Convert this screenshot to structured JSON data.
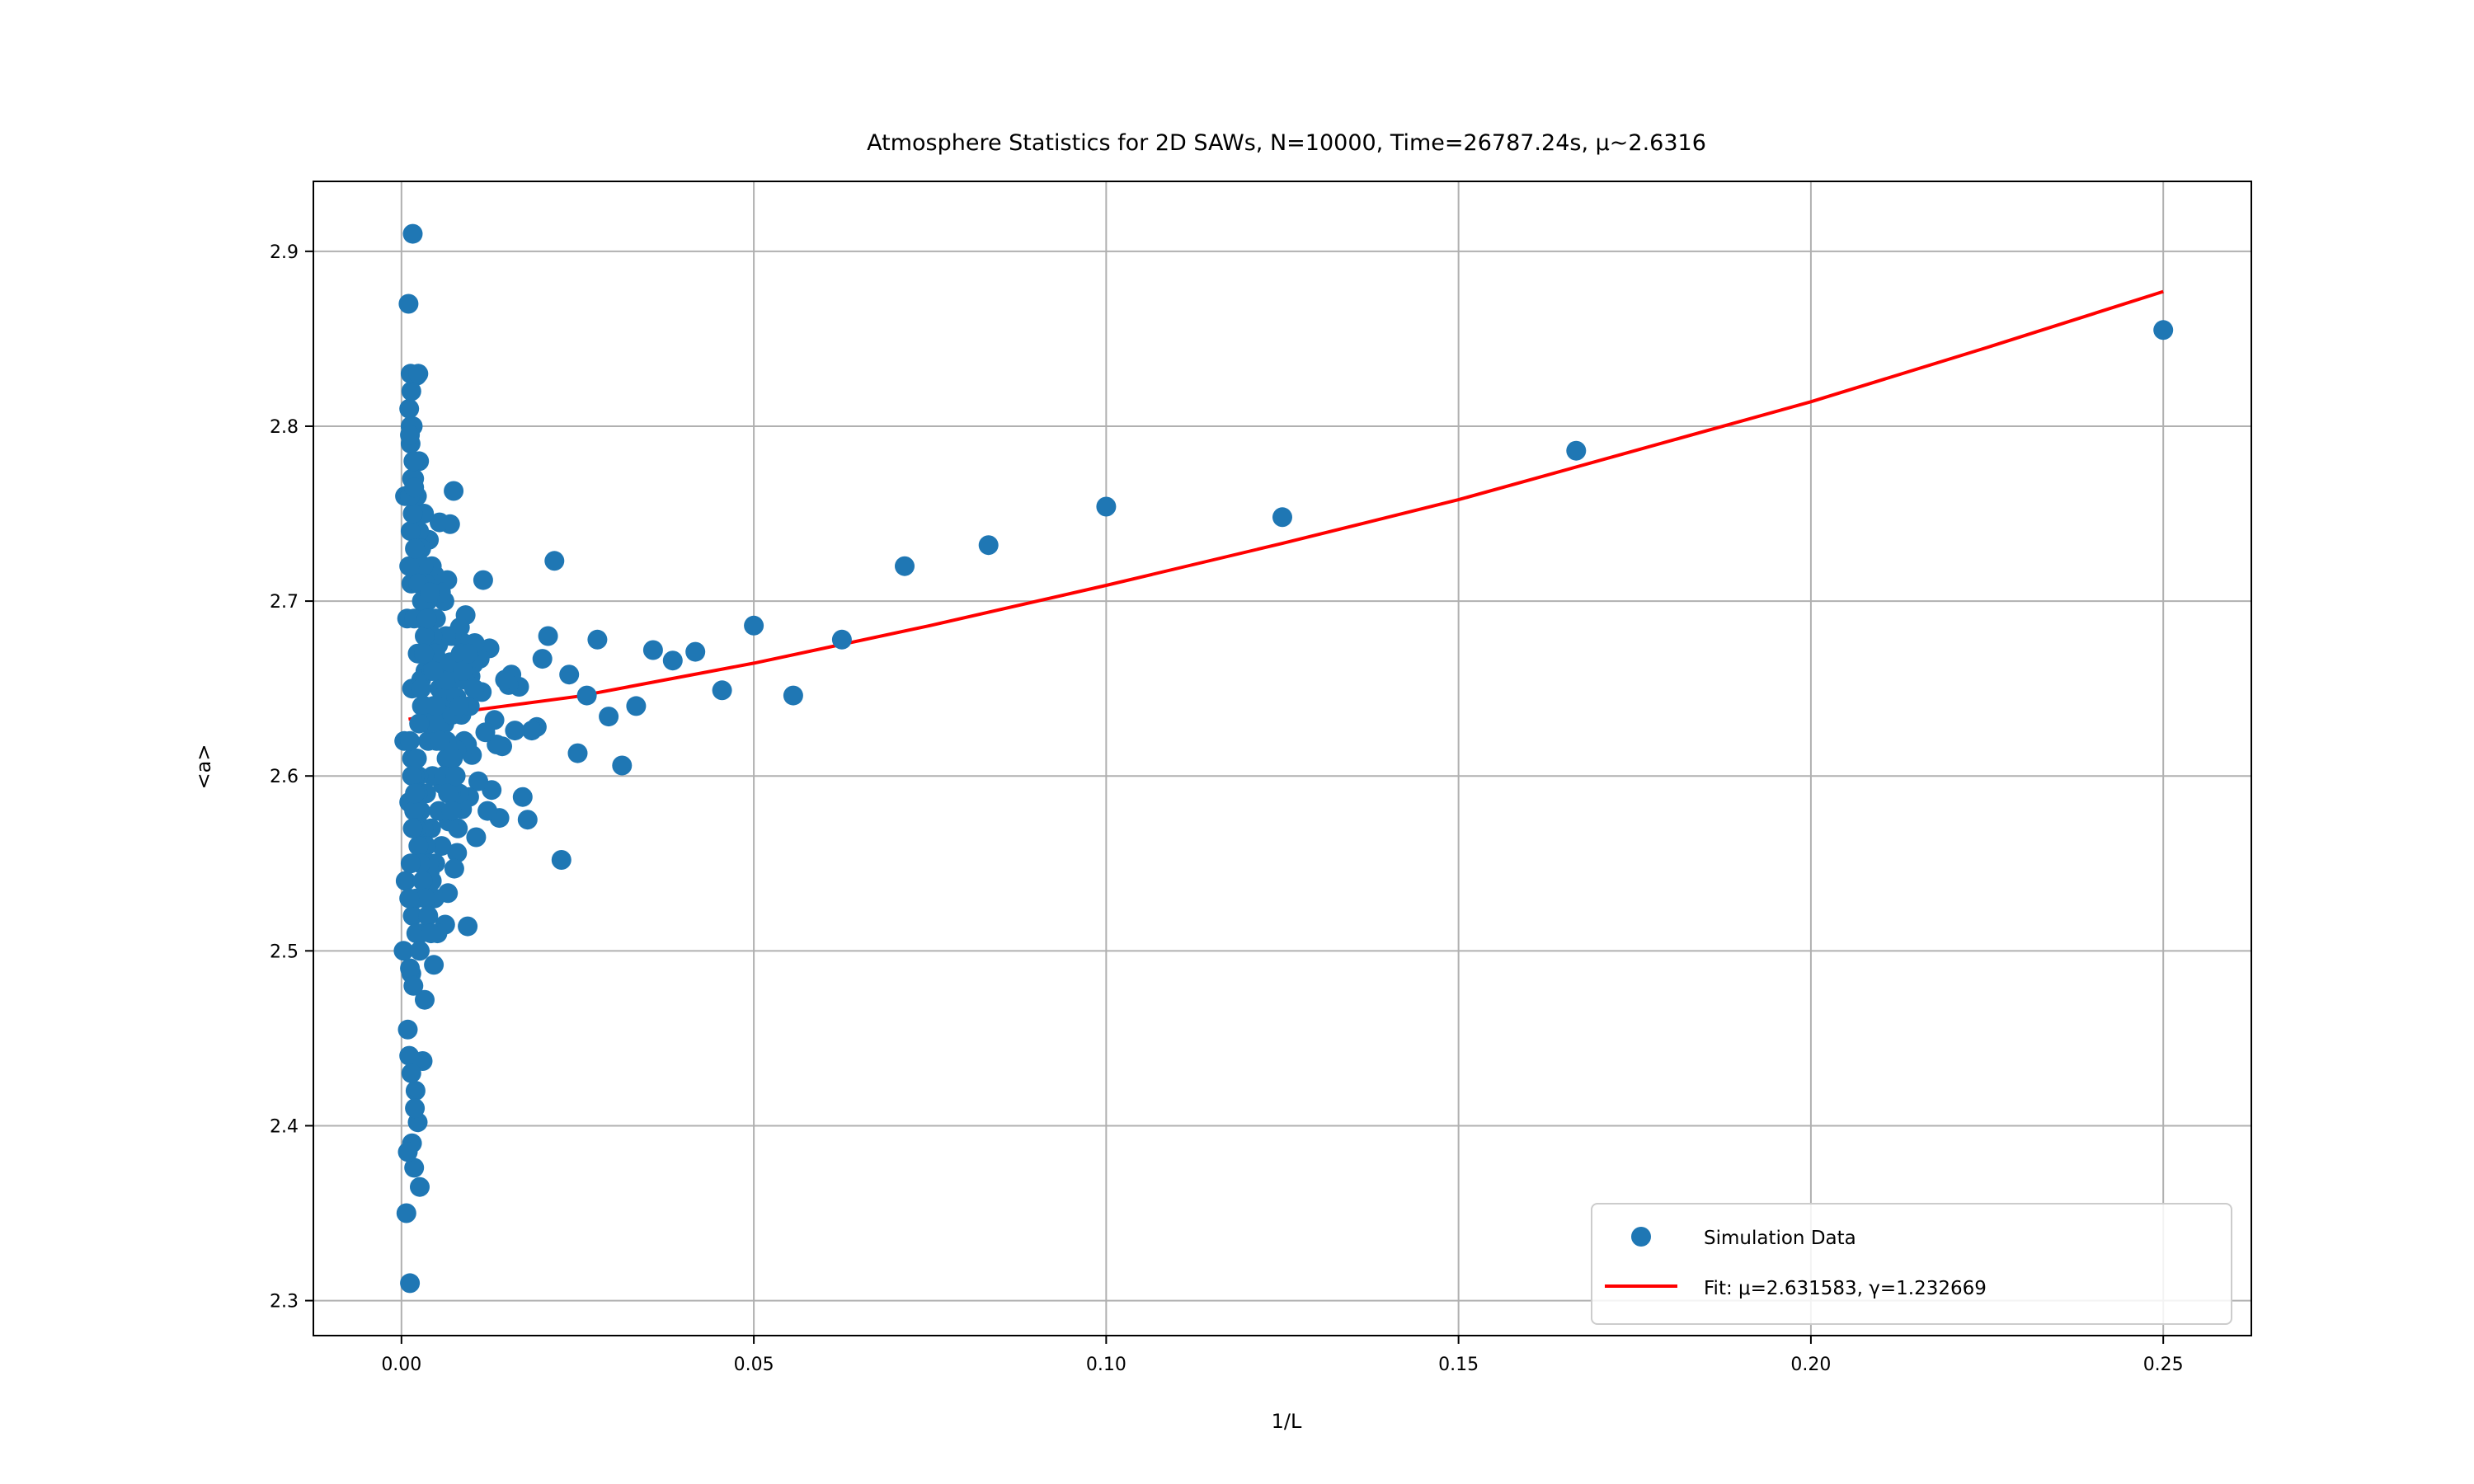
{
  "chart_data": {
    "type": "scatter",
    "title": "Atmosphere Statistics for 2D SAWs, N=10000, Time=26787.24s, μ~2.6316",
    "xlabel": "1/L",
    "ylabel": "<a>",
    "xlim": [
      -0.0125,
      0.2625
    ],
    "ylim": [
      2.28,
      2.94
    ],
    "xticks": [
      0.0,
      0.05,
      0.1,
      0.15,
      0.2,
      0.25
    ],
    "xtick_labels": [
      "0.00",
      "0.05",
      "0.10",
      "0.15",
      "0.20",
      "0.25"
    ],
    "yticks": [
      2.3,
      2.4,
      2.5,
      2.6,
      2.7,
      2.8,
      2.9
    ],
    "ytick_labels": [
      "2.3",
      "2.4",
      "2.5",
      "2.6",
      "2.7",
      "2.8",
      "2.9"
    ],
    "grid": true,
    "legend_position": "bottom-right",
    "colors": {
      "scatter": "#1f77b4",
      "fit": "#ff0000"
    },
    "series": [
      {
        "name": "Simulation Data",
        "kind": "scatter",
        "points": [
          [
            0.25,
            2.855
          ],
          [
            0.1667,
            2.786
          ],
          [
            0.125,
            2.748
          ],
          [
            0.1,
            2.754
          ],
          [
            0.0833,
            2.732
          ],
          [
            0.0714,
            2.72
          ],
          [
            0.0625,
            2.678
          ],
          [
            0.0556,
            2.646
          ],
          [
            0.05,
            2.686
          ],
          [
            0.0455,
            2.649
          ],
          [
            0.0417,
            2.671
          ],
          [
            0.0385,
            2.666
          ],
          [
            0.0357,
            2.672
          ],
          [
            0.0333,
            2.64
          ],
          [
            0.0313,
            2.606
          ],
          [
            0.0294,
            2.634
          ],
          [
            0.0278,
            2.678
          ],
          [
            0.0263,
            2.646
          ],
          [
            0.025,
            2.613
          ],
          [
            0.0238,
            2.658
          ],
          [
            0.0227,
            2.552
          ],
          [
            0.0217,
            2.723
          ],
          [
            0.0208,
            2.68
          ],
          [
            0.02,
            2.667
          ],
          [
            0.0192,
            2.628
          ],
          [
            0.0185,
            2.626
          ],
          [
            0.0179,
            2.575
          ],
          [
            0.0172,
            2.588
          ],
          [
            0.0167,
            2.651
          ],
          [
            0.0161,
            2.626
          ],
          [
            0.0156,
            2.658
          ],
          [
            0.0152,
            2.652
          ],
          [
            0.0147,
            2.655
          ],
          [
            0.0143,
            2.617
          ],
          [
            0.0139,
            2.576
          ],
          [
            0.0135,
            2.618
          ],
          [
            0.0132,
            2.632
          ],
          [
            0.0128,
            2.592
          ],
          [
            0.0125,
            2.673
          ],
          [
            0.0122,
            2.58
          ],
          [
            0.0119,
            2.625
          ],
          [
            0.0116,
            2.712
          ],
          [
            0.0114,
            2.648
          ],
          [
            0.0111,
            2.667
          ],
          [
            0.0109,
            2.597
          ],
          [
            0.0106,
            2.565
          ],
          [
            0.0104,
            2.676
          ],
          [
            0.0102,
            2.664
          ],
          [
            0.01,
            2.612
          ],
          [
            0.0098,
            2.657
          ],
          [
            0.0096,
            2.588
          ],
          [
            0.0094,
            2.514
          ],
          [
            0.0093,
            2.618
          ],
          [
            0.0091,
            2.692
          ],
          [
            0.0089,
            2.62
          ],
          [
            0.0088,
            2.676
          ],
          [
            0.0086,
            2.581
          ],
          [
            0.0085,
            2.635
          ],
          [
            0.0083,
            2.685
          ],
          [
            0.0082,
            2.59
          ],
          [
            0.008,
            2.57
          ],
          [
            0.0079,
            2.556
          ],
          [
            0.0078,
            2.615
          ],
          [
            0.0076,
            2.66
          ],
          [
            0.0075,
            2.547
          ],
          [
            0.0074,
            2.763
          ],
          [
            0.0073,
            2.61
          ],
          [
            0.0072,
            2.64
          ],
          [
            0.0071,
            2.68
          ],
          [
            0.007,
            2.59
          ],
          [
            0.0069,
            2.744
          ],
          [
            0.0068,
            2.652
          ],
          [
            0.0067,
            2.574
          ],
          [
            0.0066,
            2.533
          ],
          [
            0.0065,
            2.712
          ],
          [
            0.0064,
            2.61
          ],
          [
            0.0063,
            2.68
          ],
          [
            0.0062,
            2.515
          ],
          [
            0.0061,
            2.7
          ],
          [
            0.006,
            2.64
          ],
          [
            0.0059,
            2.595
          ],
          [
            0.0058,
            2.66
          ],
          [
            0.0057,
            2.56
          ],
          [
            0.0056,
            2.705
          ],
          [
            0.0055,
            2.63
          ],
          [
            0.0054,
            2.745
          ],
          [
            0.0053,
            2.58
          ],
          [
            0.0052,
            2.675
          ],
          [
            0.0051,
            2.51
          ],
          [
            0.005,
            2.62
          ],
          [
            0.0049,
            2.69
          ],
          [
            0.0048,
            2.55
          ],
          [
            0.0047,
            2.715
          ],
          [
            0.0046,
            2.492
          ],
          [
            0.0045,
            2.64
          ],
          [
            0.0044,
            2.6
          ],
          [
            0.0043,
            2.72
          ],
          [
            0.0042,
            2.57
          ],
          [
            0.0041,
            2.68
          ],
          [
            0.004,
            2.545
          ],
          [
            0.0039,
            2.735
          ],
          [
            0.0038,
            2.62
          ],
          [
            0.0037,
            2.52
          ],
          [
            0.0036,
            2.7
          ],
          [
            0.0035,
            2.59
          ],
          [
            0.0034,
            2.66
          ],
          [
            0.0033,
            2.472
          ],
          [
            0.0032,
            2.75
          ],
          [
            0.0031,
            2.56
          ],
          [
            0.003,
            2.437
          ],
          [
            0.0029,
            2.64
          ],
          [
            0.0028,
            2.69
          ],
          [
            0.0027,
            2.51
          ],
          [
            0.0026,
            2.365
          ],
          [
            0.0025,
            2.78
          ],
          [
            0.0024,
            2.6
          ],
          [
            0.0023,
            2.402
          ],
          [
            0.0022,
            2.829
          ],
          [
            0.0021,
            2.53
          ],
          [
            0.002,
            2.42
          ],
          [
            0.0019,
            2.72
          ],
          [
            0.0018,
            2.376
          ],
          [
            0.0017,
            2.57
          ],
          [
            0.0016,
            2.91
          ],
          [
            0.0015,
            2.65
          ],
          [
            0.0014,
            2.487
          ],
          [
            0.0013,
            2.8
          ],
          [
            0.0012,
            2.31
          ],
          [
            0.0011,
            2.585
          ],
          [
            0.001,
            2.87
          ],
          [
            0.0009,
            2.455
          ],
          [
            0.0008,
            2.69
          ],
          [
            0.0007,
            2.35
          ],
          [
            0.0006,
            2.54
          ],
          [
            0.0005,
            2.76
          ],
          [
            0.0004,
            2.62
          ],
          [
            0.0003,
            2.5
          ],
          [
            0.0013,
            2.79
          ],
          [
            0.0018,
            2.77
          ],
          [
            0.0022,
            2.76
          ],
          [
            0.0025,
            2.74
          ],
          [
            0.0028,
            2.73
          ],
          [
            0.0031,
            2.72
          ],
          [
            0.0034,
            2.71
          ],
          [
            0.0037,
            2.7
          ],
          [
            0.0041,
            2.69
          ],
          [
            0.0044,
            2.68
          ],
          [
            0.0047,
            2.67
          ],
          [
            0.0051,
            2.66
          ],
          [
            0.0054,
            2.65
          ],
          [
            0.0057,
            2.64
          ],
          [
            0.0061,
            2.63
          ],
          [
            0.0064,
            2.62
          ],
          [
            0.0068,
            2.61
          ],
          [
            0.0015,
            2.61
          ],
          [
            0.0019,
            2.6
          ],
          [
            0.0023,
            2.59
          ],
          [
            0.0027,
            2.58
          ],
          [
            0.0031,
            2.57
          ],
          [
            0.0035,
            2.56
          ],
          [
            0.0039,
            2.55
          ],
          [
            0.0043,
            2.54
          ],
          [
            0.0047,
            2.53
          ],
          [
            0.0016,
            2.52
          ],
          [
            0.0021,
            2.51
          ],
          [
            0.0026,
            2.5
          ],
          [
            0.0012,
            2.49
          ],
          [
            0.0017,
            2.48
          ],
          [
            0.0011,
            2.44
          ],
          [
            0.0014,
            2.43
          ],
          [
            0.0019,
            2.41
          ],
          [
            0.0015,
            2.39
          ],
          [
            0.0009,
            2.385
          ],
          [
            0.0014,
            2.71
          ],
          [
            0.0018,
            2.69
          ],
          [
            0.0023,
            2.67
          ],
          [
            0.0028,
            2.655
          ],
          [
            0.0033,
            2.64
          ],
          [
            0.0038,
            2.63
          ],
          [
            0.0043,
            2.66
          ],
          [
            0.0048,
            2.67
          ],
          [
            0.0053,
            2.63
          ],
          [
            0.0058,
            2.645
          ],
          [
            0.0063,
            2.655
          ],
          [
            0.0069,
            2.665
          ],
          [
            0.0072,
            2.635
          ],
          [
            0.0078,
            2.645
          ],
          [
            0.0084,
            2.67
          ],
          [
            0.009,
            2.655
          ],
          [
            0.0097,
            2.64
          ],
          [
            0.0103,
            2.65
          ],
          [
            0.0011,
            2.72
          ],
          [
            0.0013,
            2.74
          ],
          [
            0.0016,
            2.75
          ],
          [
            0.0019,
            2.73
          ],
          [
            0.0024,
            2.71
          ],
          [
            0.0029,
            2.7
          ],
          [
            0.0033,
            2.68
          ],
          [
            0.0012,
            2.76
          ],
          [
            0.0015,
            2.77
          ],
          [
            0.0017,
            2.78
          ],
          [
            0.0011,
            2.81
          ],
          [
            0.0014,
            2.82
          ],
          [
            0.0013,
            2.83
          ],
          [
            0.0024,
            2.83
          ],
          [
            0.0016,
            2.8
          ],
          [
            0.0012,
            2.795
          ],
          [
            0.0018,
            2.765
          ],
          [
            0.0012,
            2.62
          ],
          [
            0.0015,
            2.6
          ],
          [
            0.0018,
            2.58
          ],
          [
            0.0021,
            2.57
          ],
          [
            0.0024,
            2.56
          ],
          [
            0.0027,
            2.55
          ],
          [
            0.003,
            2.54
          ],
          [
            0.0034,
            2.53
          ],
          [
            0.0038,
            2.52
          ],
          [
            0.0042,
            2.51
          ],
          [
            0.0011,
            2.53
          ],
          [
            0.0013,
            2.55
          ],
          [
            0.0016,
            2.57
          ],
          [
            0.0019,
            2.59
          ],
          [
            0.0022,
            2.61
          ],
          [
            0.0025,
            2.63
          ],
          [
            0.0028,
            2.65
          ],
          [
            0.0032,
            2.67
          ],
          [
            0.0036,
            2.69
          ],
          [
            0.004,
            2.705
          ],
          [
            0.0045,
            2.66
          ],
          [
            0.0049,
            2.64
          ],
          [
            0.0055,
            2.62
          ],
          [
            0.006,
            2.6
          ],
          [
            0.0066,
            2.59
          ],
          [
            0.0071,
            2.58
          ],
          [
            0.0077,
            2.6
          ],
          [
            0.0082,
            2.64
          ],
          [
            0.0087,
            2.66
          ],
          [
            0.0095,
            2.67
          ]
        ]
      },
      {
        "name": "Fit: μ=2.631583, γ=1.232669",
        "kind": "line",
        "x": [
          0.001,
          0.01,
          0.025,
          0.05,
          0.075,
          0.1,
          0.125,
          0.15,
          0.175,
          0.2,
          0.225,
          0.25
        ],
        "y": [
          2.6325,
          2.6375,
          2.6455,
          2.6645,
          2.686,
          2.709,
          2.733,
          2.758,
          2.786,
          2.814,
          2.845,
          2.877
        ]
      }
    ]
  }
}
